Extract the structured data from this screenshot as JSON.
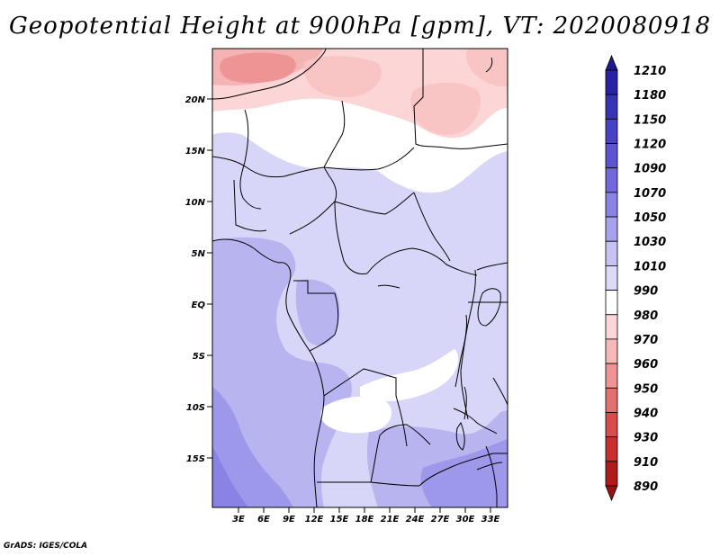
{
  "title": "Geopotential Height at 900hPa [gpm], VT: 2020080918",
  "credit": "GrADS: IGES/COLA",
  "map": {
    "lat_labels": [
      "20N",
      "15N",
      "10N",
      "5N",
      "EQ",
      "5S",
      "10S",
      "15S"
    ],
    "lon_labels": [
      "3E",
      "6E",
      "9E",
      "12E",
      "15E",
      "18E",
      "21E",
      "24E",
      "27E",
      "30E",
      "33E"
    ]
  },
  "colorbar": {
    "levels": [
      "1210",
      "1180",
      "1150",
      "1120",
      "1090",
      "1070",
      "1050",
      "1030",
      "1010",
      "990",
      "980",
      "970",
      "960",
      "950",
      "940",
      "930",
      "910",
      "890"
    ],
    "colors": [
      "#1e1a8e",
      "#2a22a4",
      "#3a32b6",
      "#4a42c4",
      "#5c54d2",
      "#7268dc",
      "#8a82e4",
      "#a8a2ee",
      "#c6c2f4",
      "#dcdaf8",
      "#ffffff",
      "#fcd6d6",
      "#f7b8b8",
      "#ee9494",
      "#e27070",
      "#d84c4c",
      "#c83030",
      "#b01c1c",
      "#9a1010"
    ]
  }
}
